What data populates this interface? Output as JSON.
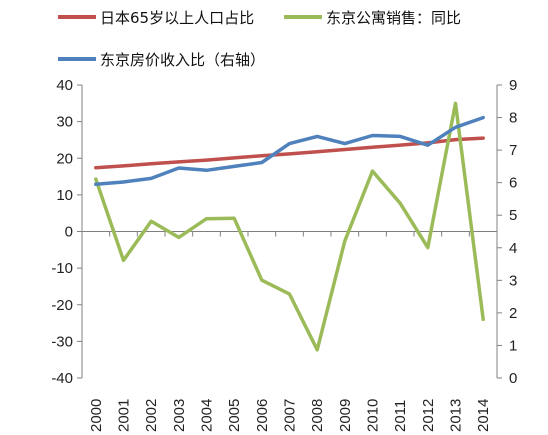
{
  "chart_data": {
    "type": "line",
    "title": "",
    "categories": [
      "2000",
      "2001",
      "2002",
      "2003",
      "2004",
      "2005",
      "2006",
      "2007",
      "2008",
      "2009",
      "2010",
      "2011",
      "2012",
      "2013",
      "2014"
    ],
    "y_left": {
      "min": -40,
      "max": 40,
      "step": 10,
      "ticks": [
        "-40",
        "-30",
        "-20",
        "-10",
        "0",
        "10",
        "20",
        "30",
        "40"
      ]
    },
    "y_right": {
      "min": 0,
      "max": 9,
      "step": 1,
      "ticks": [
        "0",
        "1",
        "2",
        "3",
        "4",
        "5",
        "6",
        "7",
        "8",
        "9"
      ]
    },
    "grid": false,
    "legend_position": "top",
    "series": [
      {
        "name": "日本65岁以上人口占比",
        "axis": "left",
        "color": "#c0504d",
        "values": [
          17.4,
          17.9,
          18.5,
          19.0,
          19.5,
          20.1,
          20.7,
          21.2,
          21.8,
          22.4,
          23.0,
          23.6,
          24.2,
          25.1,
          25.5
        ]
      },
      {
        "name": "东京公寓销售：同比",
        "axis": "left",
        "color": "#9bbb59",
        "values": [
          14.3,
          -7.9,
          2.8,
          -1.6,
          3.5,
          3.6,
          -13.3,
          -17.1,
          -32.3,
          -2.6,
          16.5,
          7.7,
          -4.4,
          35.0,
          -24.0
        ]
      },
      {
        "name": "东京房价收入比（右轴）",
        "axis": "right",
        "color": "#4f81bd",
        "values": [
          5.95,
          6.02,
          6.13,
          6.45,
          6.38,
          6.5,
          6.62,
          7.2,
          7.42,
          7.2,
          7.45,
          7.42,
          7.15,
          7.7,
          8.0
        ]
      }
    ]
  }
}
